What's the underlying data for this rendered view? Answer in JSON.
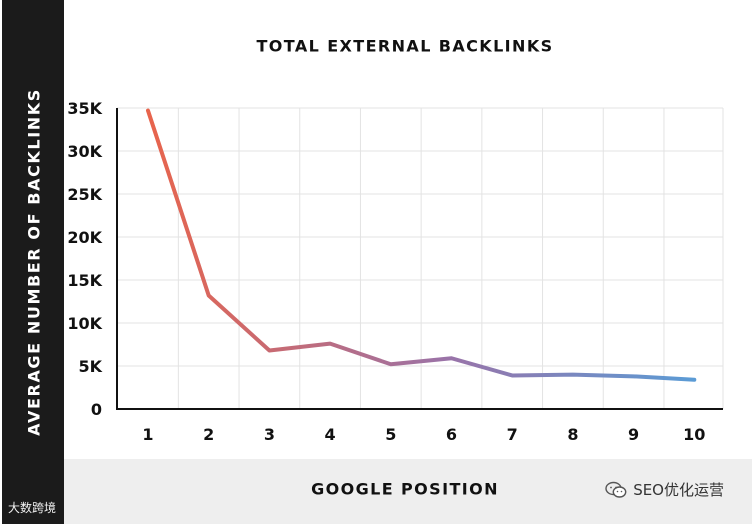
{
  "chart_data": {
    "type": "line",
    "title": "TOTAL EXTERNAL BACKLINKS",
    "xlabel": "GOOGLE POSITION",
    "ylabel": "AVERAGE NUMBER OF BACKLINKS",
    "x": [
      1,
      2,
      3,
      4,
      5,
      6,
      7,
      8,
      9,
      10
    ],
    "y": [
      34700,
      13200,
      6800,
      7600,
      5200,
      5900,
      3900,
      4000,
      3800,
      3400
    ],
    "x_tick_labels": [
      "1",
      "2",
      "3",
      "4",
      "5",
      "6",
      "7",
      "8",
      "9",
      "10"
    ],
    "y_ticks": [
      0,
      5000,
      10000,
      15000,
      20000,
      25000,
      30000,
      35000
    ],
    "y_tick_labels": [
      "0",
      "5K",
      "10K",
      "15K",
      "20K",
      "25K",
      "30K",
      "35K"
    ],
    "ylim": [
      0,
      35000
    ],
    "grid": true,
    "legend": "none",
    "line_gradient": [
      "#e8644c",
      "#9a73a8",
      "#5b9bd5"
    ]
  },
  "colors": {
    "axis_band": "#1b1b1b",
    "x_band": "#eeeeee",
    "grid": "#e3e3e3",
    "axis": "#111111"
  },
  "watermarks": {
    "left": "大数跨境",
    "right": "SEO优化运营",
    "right_icon": "wechat-icon"
  }
}
